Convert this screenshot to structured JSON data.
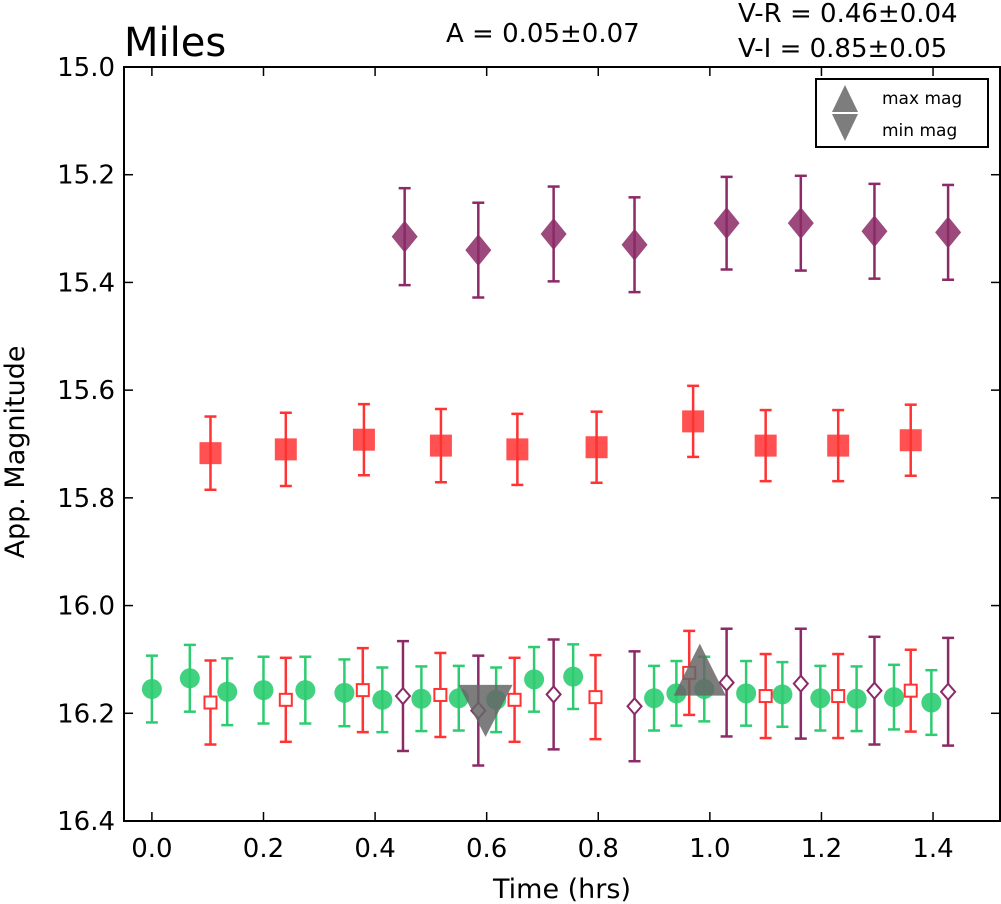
{
  "chart_data": {
    "type": "scatter",
    "title": "Miles",
    "xlabel": "Time (hrs)",
    "ylabel": "App. Magnitude",
    "xlim": [
      -0.05,
      1.52
    ],
    "ylim": [
      16.4,
      15.0
    ],
    "y_inverted": true,
    "x_ticks": [
      "0.0",
      "0.2",
      "0.4",
      "0.6",
      "0.8",
      "1.0",
      "1.2",
      "1.4"
    ],
    "y_ticks": [
      "15.0",
      "15.2",
      "15.4",
      "15.6",
      "15.8",
      "16.0",
      "16.2",
      "16.4"
    ],
    "annotations": {
      "amplitude": "A  = 0.05±0.07",
      "v_r": "V-R = 0.46±0.04",
      "v_i": "V-I  = 0.85±0.05"
    },
    "legend": {
      "placement": "top-right",
      "entries": [
        {
          "label": "max mag",
          "marker": "triangle-up"
        },
        {
          "label": "min mag",
          "marker": "triangle-down"
        }
      ]
    },
    "colors": {
      "V": "#2ecc71",
      "R": "#ff3333",
      "I": "#8b2a66",
      "extrema": "#666666"
    },
    "series": [
      {
        "marker": "diamond-filled",
        "color": "#8b2a66",
        "points": [
          {
            "x": 0.453,
            "y": 15.315,
            "err": 0.09
          },
          {
            "x": 0.585,
            "y": 15.34,
            "err": 0.088
          },
          {
            "x": 0.72,
            "y": 15.31,
            "err": 0.088
          },
          {
            "x": 0.865,
            "y": 15.33,
            "err": 0.088
          },
          {
            "x": 1.03,
            "y": 15.29,
            "err": 0.086
          },
          {
            "x": 1.163,
            "y": 15.29,
            "err": 0.088
          },
          {
            "x": 1.295,
            "y": 15.305,
            "err": 0.088
          },
          {
            "x": 1.427,
            "y": 15.307,
            "err": 0.088
          }
        ]
      },
      {
        "marker": "square-filled",
        "color": "#ff3333",
        "points": [
          {
            "x": 0.105,
            "y": 15.717,
            "err": 0.068
          },
          {
            "x": 0.24,
            "y": 15.71,
            "err": 0.068
          },
          {
            "x": 0.38,
            "y": 15.692,
            "err": 0.066
          },
          {
            "x": 0.518,
            "y": 15.703,
            "err": 0.068
          },
          {
            "x": 0.655,
            "y": 15.71,
            "err": 0.066
          },
          {
            "x": 0.797,
            "y": 15.706,
            "err": 0.066
          },
          {
            "x": 0.97,
            "y": 15.658,
            "err": 0.066
          },
          {
            "x": 1.1,
            "y": 15.703,
            "err": 0.066
          },
          {
            "x": 1.23,
            "y": 15.703,
            "err": 0.066
          },
          {
            "x": 1.36,
            "y": 15.693,
            "err": 0.066
          }
        ]
      },
      {
        "marker": "circle-filled",
        "color": "#2ecc71",
        "points": [
          {
            "x": 0.0,
            "y": 16.155,
            "err": 0.062
          },
          {
            "x": 0.068,
            "y": 16.135,
            "err": 0.062
          },
          {
            "x": 0.135,
            "y": 16.16,
            "err": 0.062
          },
          {
            "x": 0.2,
            "y": 16.157,
            "err": 0.062
          },
          {
            "x": 0.275,
            "y": 16.157,
            "err": 0.062
          },
          {
            "x": 0.345,
            "y": 16.162,
            "err": 0.062
          },
          {
            "x": 0.413,
            "y": 16.175,
            "err": 0.06
          },
          {
            "x": 0.483,
            "y": 16.173,
            "err": 0.06
          },
          {
            "x": 0.55,
            "y": 16.172,
            "err": 0.06
          },
          {
            "x": 0.617,
            "y": 16.175,
            "err": 0.06
          },
          {
            "x": 0.685,
            "y": 16.137,
            "err": 0.06
          },
          {
            "x": 0.755,
            "y": 16.132,
            "err": 0.06
          },
          {
            "x": 0.9,
            "y": 16.172,
            "err": 0.06
          },
          {
            "x": 0.94,
            "y": 16.163,
            "err": 0.06
          },
          {
            "x": 0.99,
            "y": 16.155,
            "err": 0.06
          },
          {
            "x": 1.065,
            "y": 16.163,
            "err": 0.06
          },
          {
            "x": 1.13,
            "y": 16.165,
            "err": 0.06
          },
          {
            "x": 1.198,
            "y": 16.172,
            "err": 0.06
          },
          {
            "x": 1.263,
            "y": 16.173,
            "err": 0.06
          },
          {
            "x": 1.33,
            "y": 16.17,
            "err": 0.06
          },
          {
            "x": 1.397,
            "y": 16.18,
            "err": 0.06
          }
        ]
      },
      {
        "marker": "square-open",
        "color": "#ff3333",
        "points": [
          {
            "x": 0.105,
            "y": 16.18,
            "err": 0.078
          },
          {
            "x": 0.24,
            "y": 16.175,
            "err": 0.078
          },
          {
            "x": 0.378,
            "y": 16.157,
            "err": 0.078
          },
          {
            "x": 0.517,
            "y": 16.166,
            "err": 0.078
          },
          {
            "x": 0.65,
            "y": 16.175,
            "err": 0.078
          },
          {
            "x": 0.795,
            "y": 16.17,
            "err": 0.078
          },
          {
            "x": 0.963,
            "y": 16.125,
            "err": 0.078
          },
          {
            "x": 1.1,
            "y": 16.168,
            "err": 0.078
          },
          {
            "x": 1.23,
            "y": 16.168,
            "err": 0.078
          },
          {
            "x": 1.36,
            "y": 16.158,
            "err": 0.076
          }
        ]
      },
      {
        "marker": "diamond-open",
        "color": "#8b2a66",
        "points": [
          {
            "x": 0.45,
            "y": 16.168,
            "err": 0.102
          },
          {
            "x": 0.585,
            "y": 16.195,
            "err": 0.102
          },
          {
            "x": 0.72,
            "y": 16.165,
            "err": 0.102
          },
          {
            "x": 0.865,
            "y": 16.187,
            "err": 0.102
          },
          {
            "x": 1.03,
            "y": 16.143,
            "err": 0.1
          },
          {
            "x": 1.163,
            "y": 16.145,
            "err": 0.102
          },
          {
            "x": 1.295,
            "y": 16.158,
            "err": 0.1
          },
          {
            "x": 1.427,
            "y": 16.16,
            "err": 0.1
          }
        ]
      },
      {
        "marker": "triangle-up",
        "color": "#666666",
        "points": [
          {
            "x": 0.982,
            "y": 16.145
          }
        ]
      },
      {
        "marker": "triangle-down",
        "color": "#666666",
        "points": [
          {
            "x": 0.598,
            "y": 16.175
          }
        ]
      }
    ]
  }
}
